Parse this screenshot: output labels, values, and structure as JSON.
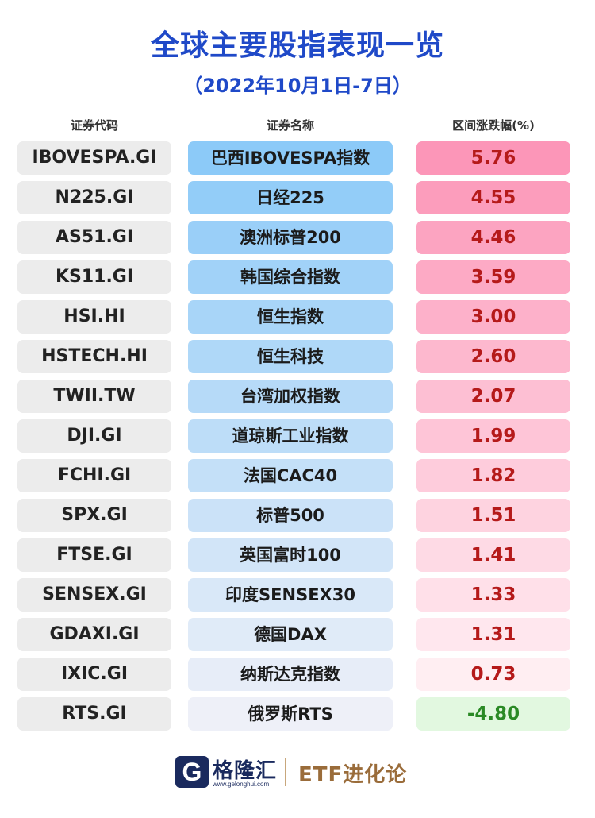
{
  "title": "全球主要股指表现一览",
  "subtitle": "（2022年10月1日-7日）",
  "headers": {
    "code": "证券代码",
    "name": "证券名称",
    "change": "区间涨跌幅(%)"
  },
  "colors": {
    "title": "#1f49c8",
    "positive_text": "#b51a1a",
    "negative_text": "#2a8a25",
    "negative_bg": "#e2f8e0",
    "name_bg_strong": "#8ccaf8",
    "name_bg_light": "#eef0f8",
    "val_bg_strong": "#fc96b8",
    "val_bg_light": "#ffeef2",
    "code_bg": "#ececec"
  },
  "rows": [
    {
      "code": "IBOVESPA.GI",
      "name": "巴西IBOVESPA指数",
      "change": "5.76"
    },
    {
      "code": "N225.GI",
      "name": "日经225",
      "change": "4.55"
    },
    {
      "code": "AS51.GI",
      "name": "澳洲标普200",
      "change": "4.46"
    },
    {
      "code": "KS11.GI",
      "name": "韩国综合指数",
      "change": "3.59"
    },
    {
      "code": "HSI.HI",
      "name": "恒生指数",
      "change": "3.00"
    },
    {
      "code": "HSTECH.HI",
      "name": "恒生科技",
      "change": "2.60"
    },
    {
      "code": "TWII.TW",
      "name": "台湾加权指数",
      "change": "2.07"
    },
    {
      "code": "DJI.GI",
      "name": "道琼斯工业指数",
      "change": "1.99"
    },
    {
      "code": "FCHI.GI",
      "name": "法国CAC40",
      "change": "1.82"
    },
    {
      "code": "SPX.GI",
      "name": "标普500",
      "change": "1.51"
    },
    {
      "code": "FTSE.GI",
      "name": "英国富时100",
      "change": "1.41"
    },
    {
      "code": "SENSEX.GI",
      "name": "印度SENSEX30",
      "change": "1.33"
    },
    {
      "code": "GDAXI.GI",
      "name": "德国DAX",
      "change": "1.31"
    },
    {
      "code": "IXIC.GI",
      "name": "纳斯达克指数",
      "change": "0.73"
    },
    {
      "code": "RTS.GI",
      "name": "俄罗斯RTS",
      "change": "-4.80"
    }
  ],
  "footer": {
    "logo_icon": "gelonghui-g-logo",
    "logo_glyph": "G",
    "logo_text": "格隆汇",
    "logo_url": "www.gelonghui.com",
    "brand2": "ETF进化论"
  }
}
